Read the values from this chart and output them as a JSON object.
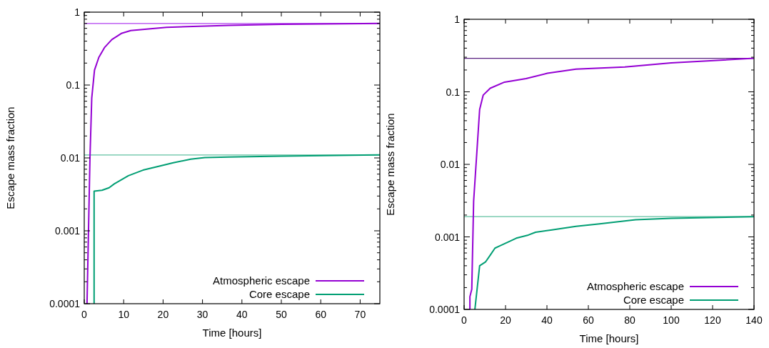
{
  "chart_data": [
    {
      "type": "line",
      "xlabel": "Time [hours]",
      "ylabel": "Escape mass fraction",
      "log": "y",
      "xlim": [
        0,
        75
      ],
      "xticks": [
        0,
        10,
        20,
        30,
        40,
        50,
        60,
        70
      ],
      "ylim": [
        0.0001,
        1
      ],
      "yticks": [
        0.0001,
        0.001,
        0.01,
        0.1,
        1
      ],
      "legend": "bottom right",
      "grid": false,
      "series": [
        {
          "name": "Atmospheric escape",
          "color": "#9400d3",
          "x": [
            0.7,
            1.45,
            1.9,
            2.6,
            3.7,
            5.2,
            7.0,
            9.4,
            11.8,
            20.9,
            36.6,
            50,
            75
          ],
          "values": [
            0.0001,
            0.01,
            0.066,
            0.16,
            0.24,
            0.33,
            0.42,
            0.51,
            0.56,
            0.62,
            0.66,
            0.68,
            0.7
          ]
        },
        {
          "name": "Core escape",
          "color": "#009e73",
          "x": [
            2.5,
            2.5,
            4.5,
            6.3,
            7.6,
            11.2,
            14.9,
            18.5,
            22.6,
            27,
            30.6,
            36.6,
            50,
            75
          ],
          "values": [
            0.0001,
            0.0035,
            0.0036,
            0.0039,
            0.0044,
            0.0057,
            0.0068,
            0.0076,
            0.0086,
            0.0096,
            0.0101,
            0.0103,
            0.0106,
            0.011
          ]
        }
      ],
      "ref_lines": [
        {
          "axis": "y",
          "value": 0.7,
          "color": "#b040f0"
        },
        {
          "axis": "y",
          "value": 0.011,
          "color": "#60c0a0"
        }
      ]
    },
    {
      "type": "line",
      "xlabel": "Time [hours]",
      "ylabel": "Escape mass fraction",
      "log": "y",
      "xlim": [
        0,
        140
      ],
      "xticks": [
        0,
        20,
        40,
        60,
        80,
        100,
        120,
        140
      ],
      "ylim": [
        0.0001,
        1
      ],
      "yticks": [
        0.0001,
        0.001,
        0.01,
        0.1,
        1
      ],
      "legend": "bottom right",
      "grid": false,
      "series": [
        {
          "name": "Atmospheric escape",
          "color": "#9400d3",
          "x": [
            2.8,
            2.8,
            3.7,
            4.6,
            7.5,
            9.2,
            12.6,
            19.5,
            29.9,
            40.2,
            54,
            77.6,
            100,
            140
          ],
          "values": [
            0.0001,
            0.00015,
            0.00019,
            0.0031,
            0.057,
            0.09,
            0.112,
            0.136,
            0.152,
            0.18,
            0.205,
            0.22,
            0.25,
            0.29
          ]
        },
        {
          "name": "Core escape",
          "color": "#009e73",
          "x": [
            5.2,
            7.5,
            10.3,
            12.6,
            14.9,
            17.2,
            21.7,
            25.2,
            31,
            34.5,
            42.4,
            54,
            65.5,
            82.8,
            100,
            140
          ],
          "values": [
            0.0001,
            0.0004,
            0.00045,
            0.00056,
            0.0007,
            0.00075,
            0.00086,
            0.00096,
            0.00106,
            0.00116,
            0.00125,
            0.0014,
            0.00151,
            0.00172,
            0.0018,
            0.0019
          ]
        }
      ],
      "ref_lines": [
        {
          "axis": "y",
          "value": 0.29,
          "color": "#5a2080"
        },
        {
          "axis": "y",
          "value": 0.0019,
          "color": "#60c0a0"
        }
      ]
    }
  ]
}
